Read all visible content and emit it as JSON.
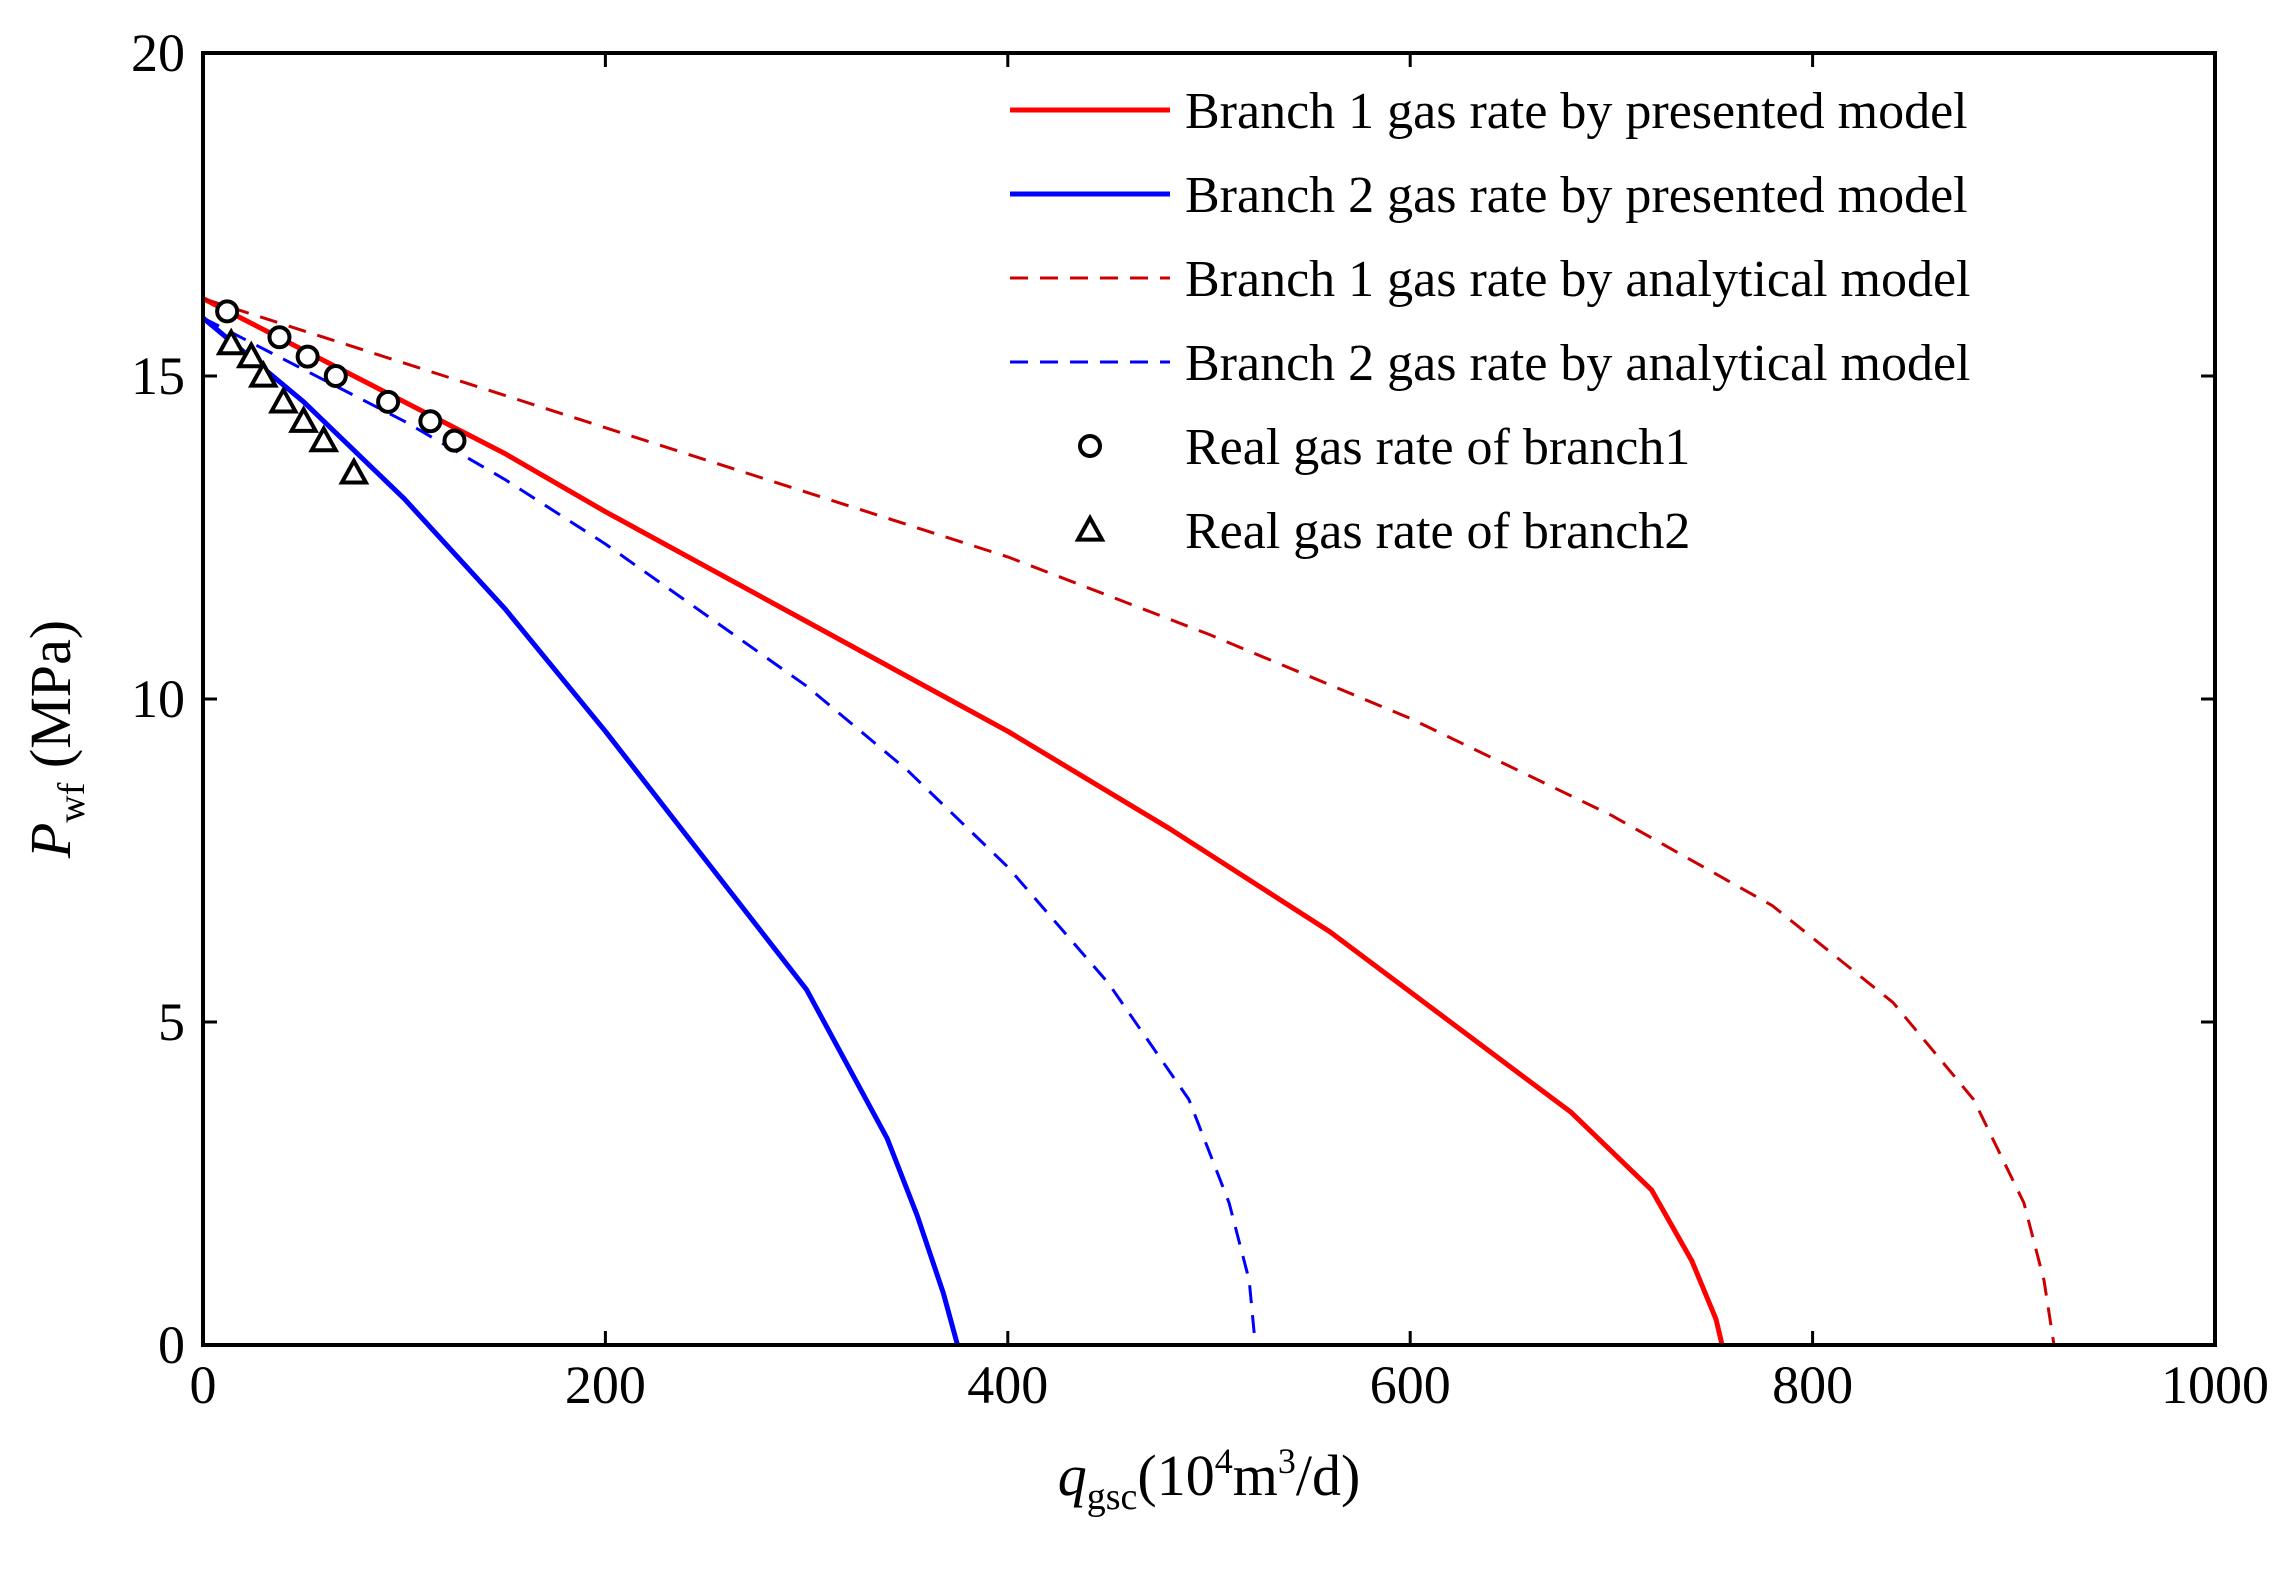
{
  "chart_data": {
    "type": "line",
    "title": "",
    "xlabel": {
      "main": "q",
      "sub": "gsc",
      "unit": "(10",
      "sup1": "4",
      "mid": "m",
      "sup2": "3",
      "tail": "/d)"
    },
    "ylabel": {
      "main": "P",
      "sub": "wf",
      "unit": " (MPa)"
    },
    "xlim": [
      0,
      1000
    ],
    "ylim": [
      0,
      20
    ],
    "xticks": [
      0,
      200,
      400,
      600,
      800,
      1000
    ],
    "yticks": [
      0,
      5,
      10,
      15,
      20
    ],
    "xtick_labels": [
      "0",
      "200",
      "400",
      "600",
      "800",
      "1000"
    ],
    "ytick_labels": [
      "0",
      "5",
      "10",
      "15",
      "20"
    ],
    "grid": false,
    "legend_position": "top-right",
    "series": [
      {
        "name": "Branch 1 gas rate by presented model",
        "color": "#ff0000",
        "style": "solid",
        "points": [
          [
            0,
            16.2
          ],
          [
            50,
            15.4
          ],
          [
            100,
            14.6
          ],
          [
            150,
            13.8
          ],
          [
            200,
            12.9
          ],
          [
            300,
            11.2
          ],
          [
            400,
            9.5
          ],
          [
            480,
            8.0
          ],
          [
            560,
            6.4
          ],
          [
            620,
            5.0
          ],
          [
            680,
            3.6
          ],
          [
            720,
            2.4
          ],
          [
            740,
            1.3
          ],
          [
            752,
            0.4
          ],
          [
            755,
            0
          ]
        ]
      },
      {
        "name": "Branch 2 gas rate by presented model",
        "color": "#0000ff",
        "style": "solid",
        "points": [
          [
            0,
            15.9
          ],
          [
            50,
            14.6
          ],
          [
            100,
            13.1
          ],
          [
            150,
            11.4
          ],
          [
            200,
            9.5
          ],
          [
            250,
            7.5
          ],
          [
            300,
            5.5
          ],
          [
            340,
            3.2
          ],
          [
            355,
            2.0
          ],
          [
            368,
            0.8
          ],
          [
            375,
            0
          ]
        ]
      },
      {
        "name": "Branch 1 gas rate by analytical model",
        "color": "#cc0000",
        "style": "dashed",
        "points": [
          [
            0,
            16.2
          ],
          [
            100,
            15.2
          ],
          [
            200,
            14.2
          ],
          [
            300,
            13.2
          ],
          [
            400,
            12.2
          ],
          [
            500,
            11.0
          ],
          [
            600,
            9.7
          ],
          [
            700,
            8.2
          ],
          [
            780,
            6.8
          ],
          [
            840,
            5.3
          ],
          [
            880,
            3.8
          ],
          [
            905,
            2.2
          ],
          [
            915,
            1.0
          ],
          [
            920,
            0
          ]
        ]
      },
      {
        "name": "Branch 2 gas rate by analytical model",
        "color": "#0000ff",
        "style": "dashed",
        "points": [
          [
            0,
            15.9
          ],
          [
            50,
            15.1
          ],
          [
            100,
            14.3
          ],
          [
            150,
            13.4
          ],
          [
            200,
            12.4
          ],
          [
            250,
            11.3
          ],
          [
            300,
            10.2
          ],
          [
            350,
            8.9
          ],
          [
            400,
            7.4
          ],
          [
            450,
            5.6
          ],
          [
            490,
            3.8
          ],
          [
            510,
            2.2
          ],
          [
            520,
            1.0
          ],
          [
            523,
            0
          ]
        ]
      }
    ],
    "markers": [
      {
        "name": "Real gas rate of branch1",
        "symbol": "circle",
        "points": [
          [
            12,
            16.0
          ],
          [
            38,
            15.6
          ],
          [
            52,
            15.3
          ],
          [
            66,
            15.0
          ],
          [
            92,
            14.6
          ],
          [
            113,
            14.3
          ],
          [
            125,
            14.0
          ]
        ]
      },
      {
        "name": "Real gas rate of branch2",
        "symbol": "triangle",
        "points": [
          [
            14,
            15.5
          ],
          [
            24,
            15.3
          ],
          [
            30,
            15.0
          ],
          [
            40,
            14.6
          ],
          [
            50,
            14.3
          ],
          [
            60,
            14.0
          ],
          [
            75,
            13.5
          ]
        ]
      }
    ]
  }
}
